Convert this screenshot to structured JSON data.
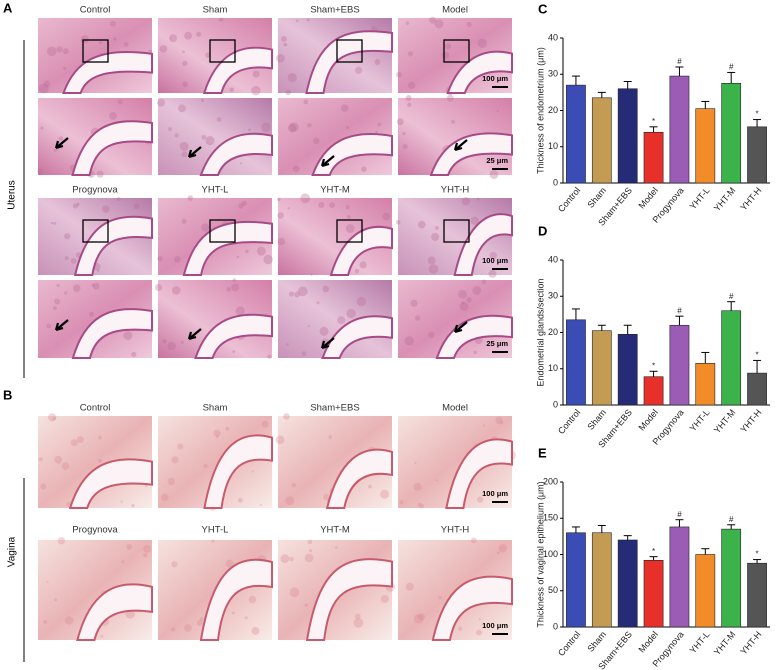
{
  "panel_a": {
    "letter": "A",
    "side_label": "Uterus",
    "groups": [
      {
        "labels": [
          "Control",
          "Sham",
          "Sham+EBS",
          "Model"
        ],
        "scale_bars": [
          "100 μm",
          "25 μm"
        ]
      },
      {
        "labels": [
          "Progynova",
          "YHT-L",
          "YHT-M",
          "YHT-H"
        ],
        "scale_bars": [
          "100 μm",
          "25 μm"
        ]
      }
    ]
  },
  "panel_b": {
    "letter": "B",
    "side_label": "Vagina",
    "rows": [
      {
        "labels": [
          "Control",
          "Sham",
          "Sham+EBS",
          "Model"
        ],
        "scale_bar": "100 μm"
      },
      {
        "labels": [
          "Progynova",
          "YHT-L",
          "YHT-M",
          "YHT-H"
        ],
        "scale_bar": "100 μm"
      }
    ]
  },
  "chart_data": [
    {
      "type": "bar",
      "panel": "C",
      "ylabel": "Thickness of endometrium (μm)",
      "categories": [
        "Control",
        "Sham",
        "Sham+EBS",
        "Model",
        "Progynova",
        "YHT-L",
        "YHT-M",
        "YHT-H"
      ],
      "values": [
        27,
        23.5,
        26,
        14,
        29.5,
        20.5,
        27.5,
        15.5
      ],
      "errors": [
        2.5,
        1.5,
        2,
        1.5,
        2.5,
        2,
        3,
        2
      ],
      "bar_labels": [
        null,
        null,
        null,
        "*",
        "#",
        null,
        "#",
        "*"
      ],
      "colors": [
        "#3b4db5",
        "#c49b52",
        "#262b78",
        "#e8302a",
        "#9b5cb6",
        "#f28c28",
        "#3bb34a",
        "#555555"
      ],
      "ylim": [
        0,
        40
      ],
      "yticks": [
        0,
        10,
        20,
        30,
        40
      ]
    },
    {
      "type": "bar",
      "panel": "D",
      "ylabel": "Endometrial glands/section",
      "categories": [
        "Control",
        "Sham",
        "Sham+EBS",
        "Model",
        "Progynova",
        "YHT-L",
        "YHT-M",
        "YHT-H"
      ],
      "values": [
        23.5,
        20.5,
        19.5,
        7.8,
        22,
        11.5,
        26,
        8.8
      ],
      "errors": [
        3,
        1.5,
        2.5,
        1.5,
        2.5,
        3,
        2.5,
        3.5
      ],
      "bar_labels": [
        null,
        null,
        null,
        "*",
        "#",
        null,
        "#",
        "*"
      ],
      "colors": [
        "#3b4db5",
        "#c49b52",
        "#262b78",
        "#e8302a",
        "#9b5cb6",
        "#f28c28",
        "#3bb34a",
        "#555555"
      ],
      "ylim": [
        0,
        40
      ],
      "yticks": [
        0,
        10,
        20,
        30,
        40
      ]
    },
    {
      "type": "bar",
      "panel": "E",
      "ylabel": "Thickness of vaginal epithelium (μm)",
      "categories": [
        "Control",
        "Sham",
        "Sham+EBS",
        "Model",
        "Progynova",
        "YHT-L",
        "YHT-M",
        "YHT-H"
      ],
      "values": [
        130,
        130,
        120,
        92,
        138,
        100,
        135,
        88
      ],
      "errors": [
        8,
        10,
        6,
        5,
        10,
        8,
        6,
        5
      ],
      "bar_labels": [
        null,
        null,
        null,
        "*",
        "#",
        null,
        "#",
        "*"
      ],
      "colors": [
        "#3b4db5",
        "#c49b52",
        "#262b78",
        "#e8302a",
        "#9b5cb6",
        "#f28c28",
        "#3bb34a",
        "#555555"
      ],
      "ylim": [
        0,
        200
      ],
      "yticks": [
        0,
        50,
        100,
        150,
        200
      ]
    }
  ]
}
